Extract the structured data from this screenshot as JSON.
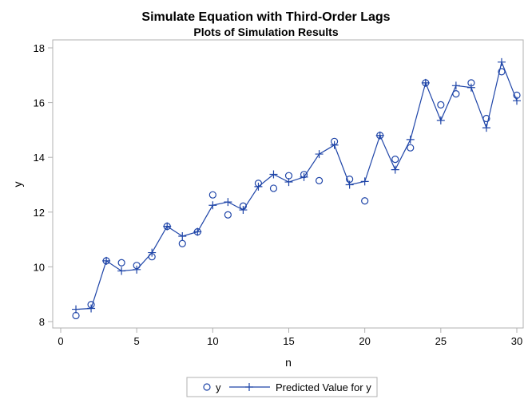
{
  "chart_data": {
    "type": "line",
    "title": "Simulate Equation with Third-Order Lags",
    "subtitle": "Plots of Simulation Results",
    "xlabel": "n",
    "ylabel": "y",
    "xlim": [
      0,
      30
    ],
    "ylim": [
      8,
      18
    ],
    "xticks": [
      0,
      5,
      10,
      15,
      20,
      25,
      30
    ],
    "yticks": [
      8,
      10,
      12,
      14,
      16,
      18
    ],
    "grid": false,
    "legend_position": "bottom-center",
    "x": [
      1,
      2,
      3,
      4,
      5,
      6,
      7,
      8,
      9,
      10,
      11,
      12,
      13,
      14,
      15,
      16,
      17,
      18,
      19,
      20,
      21,
      22,
      23,
      24,
      25,
      26,
      27,
      28,
      29,
      30
    ],
    "series": [
      {
        "name": "y",
        "marker": "circle",
        "line": false,
        "values": [
          8.22,
          8.62,
          10.22,
          10.15,
          10.05,
          10.37,
          11.48,
          10.85,
          11.28,
          12.63,
          11.9,
          12.22,
          13.05,
          12.87,
          13.33,
          13.37,
          13.15,
          14.58,
          13.2,
          12.41,
          14.8,
          13.93,
          14.35,
          16.72,
          15.92,
          16.32,
          16.72,
          15.42,
          17.13,
          16.27
        ]
      },
      {
        "name": "Predicted Value for y",
        "marker": "plus",
        "line": true,
        "values": [
          8.45,
          8.48,
          10.22,
          9.85,
          9.9,
          10.52,
          11.48,
          11.12,
          11.28,
          12.25,
          12.37,
          12.08,
          12.93,
          13.38,
          13.1,
          13.28,
          14.12,
          14.45,
          13.0,
          13.12,
          14.8,
          13.55,
          14.65,
          16.72,
          15.35,
          16.62,
          16.55,
          15.08,
          17.48,
          16.07
        ]
      }
    ],
    "color": "#1f45a8"
  }
}
